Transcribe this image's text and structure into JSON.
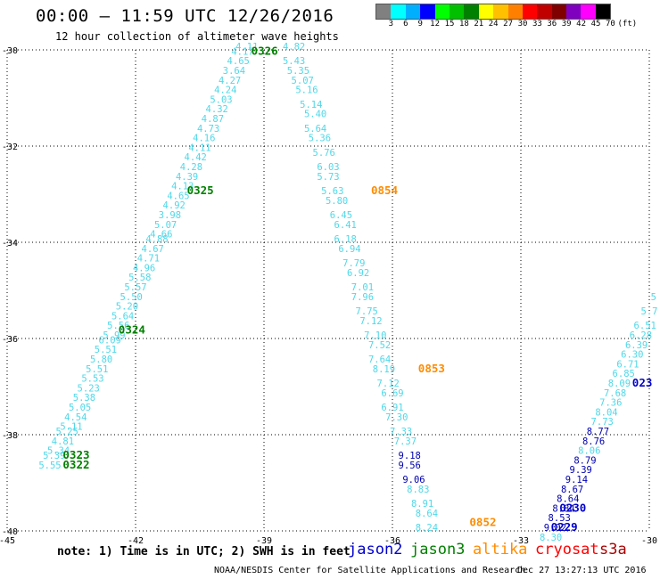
{
  "header": {
    "title": "00:00 – 11:59 UTC 12/26/2016",
    "subtitle": "12 hour collection of altimeter wave heights"
  },
  "colorbar": {
    "unit": "(ft)",
    "labels": [
      "3",
      "6",
      "9",
      "12",
      "15",
      "18",
      "21",
      "24",
      "27",
      "30",
      "33",
      "36",
      "39",
      "42",
      "45",
      "70"
    ],
    "colors": [
      "#808080",
      "#00ffff",
      "#00b0ff",
      "#0000ff",
      "#00ff00",
      "#00c000",
      "#008000",
      "#ffff00",
      "#ffc000",
      "#ff8000",
      "#ff0000",
      "#c00000",
      "#800000",
      "#8000c0",
      "#ff00ff",
      "#000000"
    ]
  },
  "colors": {
    "under_6ft": "#4fd8e8",
    "six_to_9ft": "#0000b0",
    "jason2": "#0000cc",
    "jason3": "#008000",
    "altika": "#ff8c00",
    "cryosat": "#ff0000",
    "s3a": "#aa0000"
  },
  "map": {
    "lon_labels": [
      "-45",
      "-42",
      "-39",
      "-36",
      "-33",
      "-30"
    ],
    "lat_labels": [
      "-30",
      "-32",
      "-34",
      "-36",
      "-38",
      "-40"
    ],
    "gridlines": true
  },
  "passes": [
    {
      "label": "0326",
      "satellite": "jason3",
      "lat": -30.1,
      "lon": -39.3
    },
    {
      "label": "0325",
      "satellite": "jason3",
      "lat": -33.0,
      "lon": -40.8
    },
    {
      "label": "0324",
      "satellite": "jason3",
      "lat": -35.9,
      "lon": -42.4
    },
    {
      "label": "0323",
      "satellite": "jason3",
      "lat": -38.5,
      "lon": -43.7
    },
    {
      "label": "0322",
      "satellite": "jason3",
      "lat": -38.7,
      "lon": -43.7
    },
    {
      "label": "0854",
      "satellite": "altika",
      "lat": -33.0,
      "lon": -36.5
    },
    {
      "label": "0853",
      "satellite": "altika",
      "lat": -36.7,
      "lon": -35.4
    },
    {
      "label": "0852",
      "satellite": "altika",
      "lat": -39.9,
      "lon": -34.2
    },
    {
      "label": "0230",
      "satellite": "jason2",
      "lat": -39.6,
      "lon": -32.1
    },
    {
      "label": "0229",
      "satellite": "jason2",
      "lat": -40.0,
      "lon": -32.3
    },
    {
      "label": "023",
      "satellite": "jason2",
      "lat": -37.0,
      "lon": -30.4
    }
  ],
  "tracks": [
    {
      "name": "jason3-track",
      "points": [
        {
          "lat": -30.0,
          "lon": -39.4,
          "swh": "4.11"
        },
        {
          "lat": -30.1,
          "lon": -39.5,
          "swh": "4.17"
        },
        {
          "lat": -30.3,
          "lon": -39.6,
          "swh": "4.65"
        },
        {
          "lat": -30.5,
          "lon": -39.7,
          "swh": "3.64"
        },
        {
          "lat": -30.7,
          "lon": -39.8,
          "swh": "4.27"
        },
        {
          "lat": -30.9,
          "lon": -39.9,
          "swh": "4.24"
        },
        {
          "lat": -31.1,
          "lon": -40.0,
          "swh": "5.03"
        },
        {
          "lat": -31.3,
          "lon": -40.1,
          "swh": "4.32"
        },
        {
          "lat": -31.5,
          "lon": -40.2,
          "swh": "4.87"
        },
        {
          "lat": -31.7,
          "lon": -40.3,
          "swh": "4.73"
        },
        {
          "lat": -31.9,
          "lon": -40.4,
          "swh": "4.16"
        },
        {
          "lat": -32.1,
          "lon": -40.5,
          "swh": "4.11"
        },
        {
          "lat": -32.3,
          "lon": -40.6,
          "swh": "4.42"
        },
        {
          "lat": -32.5,
          "lon": -40.7,
          "swh": "4.28"
        },
        {
          "lat": -32.7,
          "lon": -40.8,
          "swh": "4.39"
        },
        {
          "lat": -32.9,
          "lon": -40.9,
          "swh": "4.13"
        },
        {
          "lat": -33.1,
          "lon": -41.0,
          "swh": "4.65"
        },
        {
          "lat": -33.3,
          "lon": -41.1,
          "swh": "4.92"
        },
        {
          "lat": -33.5,
          "lon": -41.2,
          "swh": "3.98"
        },
        {
          "lat": -33.7,
          "lon": -41.3,
          "swh": "5.07"
        },
        {
          "lat": -33.9,
          "lon": -41.4,
          "swh": "4.66"
        },
        {
          "lat": -34.0,
          "lon": -41.5,
          "swh": "4.88"
        },
        {
          "lat": -34.2,
          "lon": -41.6,
          "swh": "4.67"
        },
        {
          "lat": -34.4,
          "lon": -41.7,
          "swh": "4.71"
        },
        {
          "lat": -34.6,
          "lon": -41.8,
          "swh": "4.96"
        },
        {
          "lat": -34.8,
          "lon": -41.9,
          "swh": "5.58"
        },
        {
          "lat": -35.0,
          "lon": -42.0,
          "swh": "5.57"
        },
        {
          "lat": -35.2,
          "lon": -42.1,
          "swh": "5.50"
        },
        {
          "lat": -35.4,
          "lon": -42.2,
          "swh": "5.20"
        },
        {
          "lat": -35.6,
          "lon": -42.3,
          "swh": "5.64"
        },
        {
          "lat": -35.8,
          "lon": -42.4,
          "swh": "5.56"
        },
        {
          "lat": -36.0,
          "lon": -42.5,
          "swh": "5.99"
        },
        {
          "lat": -36.1,
          "lon": -42.6,
          "swh": "6.09"
        },
        {
          "lat": -36.3,
          "lon": -42.7,
          "swh": "5.51"
        },
        {
          "lat": -36.5,
          "lon": -42.8,
          "swh": "5.80"
        },
        {
          "lat": -36.7,
          "lon": -42.9,
          "swh": "5.51"
        },
        {
          "lat": -36.9,
          "lon": -43.0,
          "swh": "5.53"
        },
        {
          "lat": -37.1,
          "lon": -43.1,
          "swh": "5.23"
        },
        {
          "lat": -37.3,
          "lon": -43.2,
          "swh": "5.38"
        },
        {
          "lat": -37.5,
          "lon": -43.3,
          "swh": "5.05"
        },
        {
          "lat": -37.7,
          "lon": -43.4,
          "swh": "4.54"
        },
        {
          "lat": -37.9,
          "lon": -43.5,
          "swh": "5.11"
        },
        {
          "lat": -38.0,
          "lon": -43.6,
          "swh": "5.25"
        },
        {
          "lat": -38.2,
          "lon": -43.7,
          "swh": "4.81"
        },
        {
          "lat": -38.4,
          "lon": -43.8,
          "swh": "5.34"
        },
        {
          "lat": -38.5,
          "lon": -43.9,
          "swh": "5.39"
        },
        {
          "lat": -38.7,
          "lon": -44.0,
          "swh": "5.55"
        }
      ]
    },
    {
      "name": "altika-track",
      "points": [
        {
          "lat": -30.0,
          "lon": -38.3,
          "swh": "4.82"
        },
        {
          "lat": -30.3,
          "lon": -38.3,
          "swh": "5.43"
        },
        {
          "lat": -30.5,
          "lon": -38.2,
          "swh": "5.35"
        },
        {
          "lat": -30.7,
          "lon": -38.1,
          "swh": "5.07"
        },
        {
          "lat": -30.9,
          "lon": -38.0,
          "swh": "5.16"
        },
        {
          "lat": -31.2,
          "lon": -37.9,
          "swh": "5.14"
        },
        {
          "lat": -31.4,
          "lon": -37.8,
          "swh": "5.40"
        },
        {
          "lat": -31.7,
          "lon": -37.8,
          "swh": "5.64"
        },
        {
          "lat": -31.9,
          "lon": -37.7,
          "swh": "5.36"
        },
        {
          "lat": -32.2,
          "lon": -37.6,
          "swh": "5.76"
        },
        {
          "lat": -32.5,
          "lon": -37.5,
          "swh": "6.03"
        },
        {
          "lat": -32.7,
          "lon": -37.5,
          "swh": "5.73"
        },
        {
          "lat": -33.0,
          "lon": -37.4,
          "swh": "5.63"
        },
        {
          "lat": -33.2,
          "lon": -37.3,
          "swh": "5.80"
        },
        {
          "lat": -33.5,
          "lon": -37.2,
          "swh": "6.45"
        },
        {
          "lat": -33.7,
          "lon": -37.1,
          "swh": "6.41"
        },
        {
          "lat": -34.0,
          "lon": -37.1,
          "swh": "6.18"
        },
        {
          "lat": -34.2,
          "lon": -37.0,
          "swh": "6.94"
        },
        {
          "lat": -34.5,
          "lon": -36.9,
          "swh": "7.79"
        },
        {
          "lat": -34.7,
          "lon": -36.8,
          "swh": "6.92"
        },
        {
          "lat": -35.0,
          "lon": -36.7,
          "swh": "7.01"
        },
        {
          "lat": -35.2,
          "lon": -36.7,
          "swh": "7.96"
        },
        {
          "lat": -35.5,
          "lon": -36.6,
          "swh": "7.75"
        },
        {
          "lat": -35.7,
          "lon": -36.5,
          "swh": "7.12"
        },
        {
          "lat": -36.0,
          "lon": -36.4,
          "swh": "7.10"
        },
        {
          "lat": -36.2,
          "lon": -36.3,
          "swh": "7.52"
        },
        {
          "lat": -36.5,
          "lon": -36.3,
          "swh": "7.64"
        },
        {
          "lat": -36.7,
          "lon": -36.2,
          "swh": "8.19"
        },
        {
          "lat": -37.0,
          "lon": -36.1,
          "swh": "7.12"
        },
        {
          "lat": -37.2,
          "lon": -36.0,
          "swh": "6.69"
        },
        {
          "lat": -37.5,
          "lon": -36.0,
          "swh": "6.91"
        },
        {
          "lat": -37.7,
          "lon": -35.9,
          "swh": "7.30"
        },
        {
          "lat": -38.0,
          "lon": -35.8,
          "swh": "7.33"
        },
        {
          "lat": -38.2,
          "lon": -35.7,
          "swh": "7.37"
        },
        {
          "lat": -38.5,
          "lon": -35.6,
          "swh": "9.18"
        },
        {
          "lat": -38.7,
          "lon": -35.6,
          "swh": "9.56"
        },
        {
          "lat": -39.0,
          "lon": -35.5,
          "swh": "9.06"
        },
        {
          "lat": -39.2,
          "lon": -35.4,
          "swh": "8.83"
        },
        {
          "lat": -39.5,
          "lon": -35.3,
          "swh": "8.91"
        },
        {
          "lat": -39.7,
          "lon": -35.2,
          "swh": "8.64"
        },
        {
          "lat": -40.0,
          "lon": -35.2,
          "swh": "8.24"
        }
      ]
    },
    {
      "name": "jason2-track",
      "points": [
        {
          "lat": -35.2,
          "lon": -29.9,
          "swh": "5"
        },
        {
          "lat": -35.5,
          "lon": -30.0,
          "swh": "5.7"
        },
        {
          "lat": -35.8,
          "lon": -30.1,
          "swh": "6.51"
        },
        {
          "lat": -36.0,
          "lon": -30.2,
          "swh": "6.28"
        },
        {
          "lat": -36.2,
          "lon": -30.3,
          "swh": "6.39"
        },
        {
          "lat": -36.4,
          "lon": -30.4,
          "swh": "6.30"
        },
        {
          "lat": -36.6,
          "lon": -30.5,
          "swh": "6.71"
        },
        {
          "lat": -36.8,
          "lon": -30.6,
          "swh": "6.85"
        },
        {
          "lat": -37.0,
          "lon": -30.7,
          "swh": "8.09"
        },
        {
          "lat": -37.2,
          "lon": -30.8,
          "swh": "7.68"
        },
        {
          "lat": -37.4,
          "lon": -30.9,
          "swh": "7.36"
        },
        {
          "lat": -37.6,
          "lon": -31.0,
          "swh": "8.04"
        },
        {
          "lat": -37.8,
          "lon": -31.1,
          "swh": "7.73"
        },
        {
          "lat": -38.0,
          "lon": -31.2,
          "swh": "8.77"
        },
        {
          "lat": -38.2,
          "lon": -31.3,
          "swh": "8.76"
        },
        {
          "lat": -38.4,
          "lon": -31.4,
          "swh": "8.06"
        },
        {
          "lat": -38.6,
          "lon": -31.5,
          "swh": "8.79"
        },
        {
          "lat": -38.8,
          "lon": -31.6,
          "swh": "9.39"
        },
        {
          "lat": -39.0,
          "lon": -31.7,
          "swh": "9.14"
        },
        {
          "lat": -39.2,
          "lon": -31.8,
          "swh": "8.67"
        },
        {
          "lat": -39.4,
          "lon": -31.9,
          "swh": "8.64"
        },
        {
          "lat": -39.6,
          "lon": -32.0,
          "swh": "8.84"
        },
        {
          "lat": -39.8,
          "lon": -32.1,
          "swh": "8.53"
        },
        {
          "lat": -40.0,
          "lon": -32.2,
          "swh": "9.02"
        },
        {
          "lat": -40.2,
          "lon": -32.3,
          "swh": "8.30"
        }
      ]
    }
  ],
  "footer": {
    "note": "note:  1) Time is in UTC; 2) SWH is in feet",
    "legend": [
      {
        "name": "jason2",
        "color": "#0000cc"
      },
      {
        "name": "jason3",
        "color": "#008000"
      },
      {
        "name": "altika",
        "color": "#ff8c00"
      },
      {
        "name": "cryosat",
        "color": "#ff0000"
      },
      {
        "name": "s3a",
        "color": "#aa0000"
      }
    ],
    "credit": "NOAA/NESDIS Center for Satellite Applications and Research",
    "timestamp": "Dec 27 13:27:13 UTC 2016"
  }
}
